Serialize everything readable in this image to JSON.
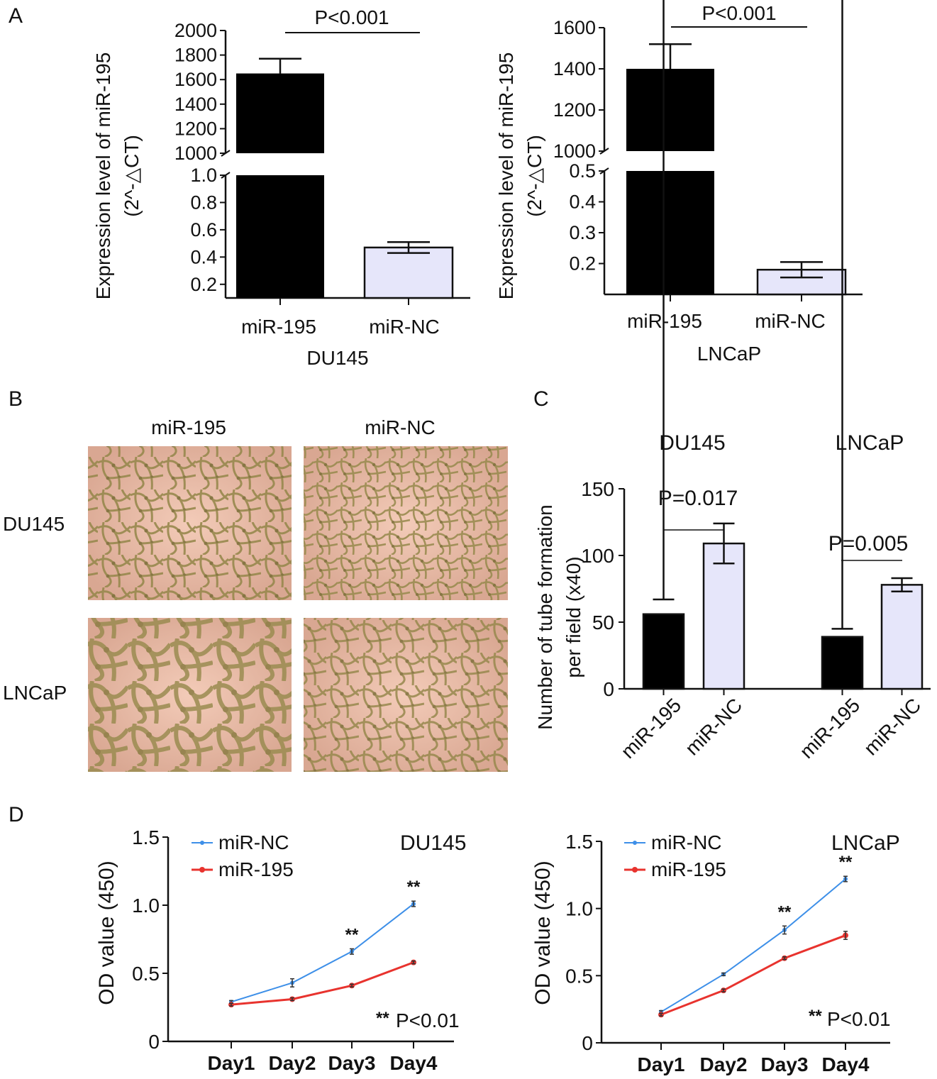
{
  "colors": {
    "bar_primary": "#000000",
    "bar_control": "#e6e6fa",
    "line_nc": "#3d8fe8",
    "line_195": "#e8332e",
    "micrograph_bg": "#e9b8a4",
    "micrograph_cells": "#97884d"
  },
  "panel_a": {
    "letter": "A",
    "ylabel_line1": "Expression level of miR-195",
    "ylabel_line2": "(2^-△CT)",
    "left": {
      "cell": "DU145",
      "p_text": "P<0.001",
      "categories": [
        "miR-195",
        "miR-NC"
      ],
      "upper_ticks": [
        "2000",
        "1800",
        "1600",
        "1400",
        "1200",
        "1000"
      ],
      "lower_ticks": [
        "1.0",
        "0.8",
        "0.6",
        "0.4",
        "0.2"
      ]
    },
    "right": {
      "cell": "LNCaP",
      "p_text": "P<0.001",
      "categories": [
        "miR-195",
        "miR-NC"
      ],
      "upper_ticks": [
        "1600",
        "1400",
        "1200",
        "1000"
      ],
      "lower_ticks": [
        "0.5",
        "0.4",
        "0.3",
        "0.2"
      ]
    }
  },
  "panel_b": {
    "letter": "B",
    "col_labels": [
      "miR-195",
      "miR-NC"
    ],
    "row_labels": [
      "DU145",
      "LNCaP"
    ]
  },
  "panel_c": {
    "letter": "C",
    "groups": [
      "DU145",
      "LNCaP"
    ],
    "ylabel_line1": "Number of tube formation",
    "ylabel_line2": "per field (x40)",
    "p_texts": [
      "P=0.017",
      "P=0.005"
    ],
    "categories": [
      "miR-195",
      "miR-NC",
      "miR-195",
      "miR-NC"
    ],
    "yticks": [
      "0",
      "50",
      "100",
      "150"
    ]
  },
  "panel_d": {
    "letter": "D",
    "ylabel": "OD value (450)",
    "legend": [
      "miR-NC",
      "miR-195"
    ],
    "xticks": [
      "Day1",
      "Day2",
      "Day3",
      "Day4"
    ],
    "yticks": [
      "0",
      "0.5",
      "1.0",
      "1.5"
    ],
    "sig_marker": "**",
    "p_text": "P<0.01",
    "left_cell": "DU145",
    "right_cell": "LNCaP"
  },
  "chart_data": [
    {
      "type": "bar",
      "panel": "A-left",
      "xlabel": "DU145",
      "ylabel": "Expression level of miR-195 (2^-△CT)",
      "categories": [
        "miR-195",
        "miR-NC"
      ],
      "values": [
        1650,
        0.47
      ],
      "errors": [
        120,
        0.04
      ],
      "axis_break": {
        "lower": [
          0.1,
          1.0
        ],
        "upper": [
          1000,
          2000
        ]
      },
      "annotation": "P<0.001"
    },
    {
      "type": "bar",
      "panel": "A-right",
      "xlabel": "LNCaP",
      "ylabel": "Expression level of miR-195 (2^-△CT)",
      "categories": [
        "miR-195",
        "miR-NC"
      ],
      "values": [
        1400,
        0.18
      ],
      "errors": [
        120,
        0.025
      ],
      "axis_break": {
        "lower": [
          0.1,
          0.5
        ],
        "upper": [
          1000,
          1600
        ]
      },
      "annotation": "P<0.001"
    },
    {
      "type": "bar",
      "panel": "C",
      "ylabel": "Number of tube formation per field (x40)",
      "ylim": [
        0,
        150
      ],
      "groups": [
        {
          "name": "DU145",
          "categories": [
            "miR-195",
            "miR-NC"
          ],
          "values": [
            56,
            109
          ],
          "errors": [
            11,
            15
          ],
          "annotation": "P=0.017"
        },
        {
          "name": "LNCaP",
          "categories": [
            "miR-195",
            "miR-NC"
          ],
          "values": [
            39,
            78
          ],
          "errors": [
            6,
            5
          ],
          "annotation": "P=0.005"
        }
      ]
    },
    {
      "type": "line",
      "panel": "D-left",
      "title": "DU145",
      "ylabel": "OD value (450)",
      "x": [
        "Day1",
        "Day2",
        "Day3",
        "Day4"
      ],
      "ylim": [
        0,
        1.5
      ],
      "series": [
        {
          "name": "miR-NC",
          "values": [
            0.29,
            0.43,
            0.66,
            1.01
          ],
          "errors": [
            0.01,
            0.03,
            0.02,
            0.02
          ]
        },
        {
          "name": "miR-195",
          "values": [
            0.27,
            0.31,
            0.41,
            0.58
          ],
          "errors": [
            0.01,
            0.01,
            0.01,
            0.01
          ]
        }
      ],
      "significance": [
        "",
        "",
        "**",
        "**"
      ],
      "annotation": "**P<0.01"
    },
    {
      "type": "line",
      "panel": "D-right",
      "title": "LNCaP",
      "ylabel": "OD value (450)",
      "x": [
        "Day1",
        "Day2",
        "Day3",
        "Day4"
      ],
      "ylim": [
        0,
        1.5
      ],
      "series": [
        {
          "name": "miR-NC",
          "values": [
            0.23,
            0.51,
            0.84,
            1.22
          ],
          "errors": [
            0.01,
            0.01,
            0.03,
            0.02
          ]
        },
        {
          "name": "miR-195",
          "values": [
            0.21,
            0.39,
            0.63,
            0.8
          ],
          "errors": [
            0.01,
            0.01,
            0.01,
            0.03
          ]
        }
      ],
      "significance": [
        "",
        "",
        "**",
        "**"
      ],
      "annotation": "**P<0.01"
    }
  ]
}
